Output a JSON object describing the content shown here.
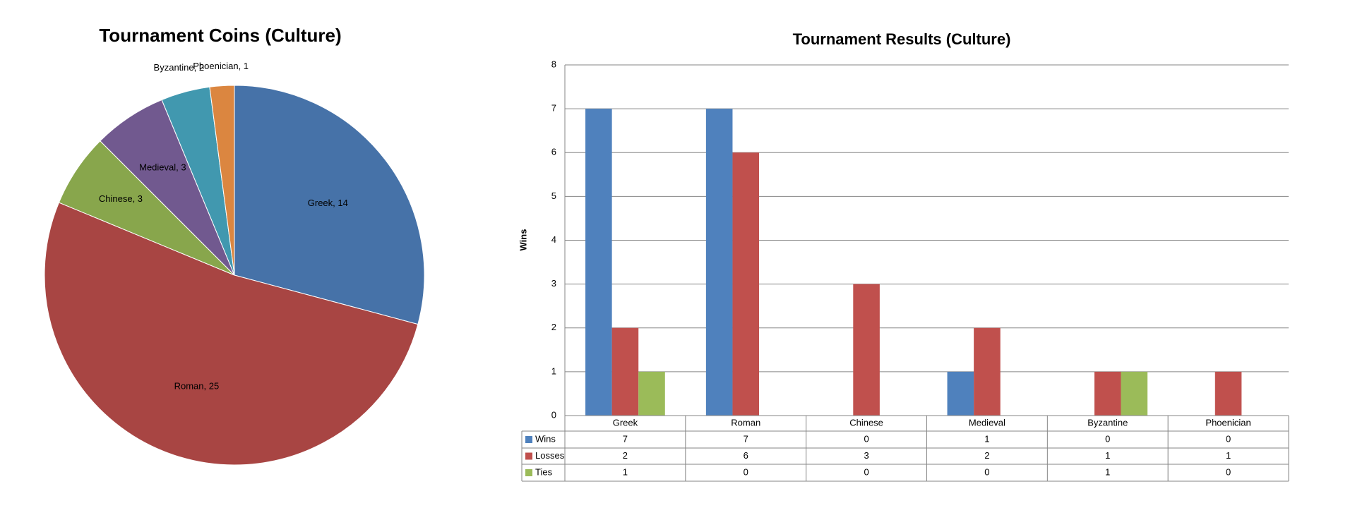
{
  "chart_data": [
    {
      "type": "pie",
      "title": "Tournament Coins (Culture)",
      "values": [
        14,
        25,
        3,
        3,
        2,
        1
      ],
      "value_labels": [
        "Greek, 14",
        "Roman, 25",
        "Chinese, 3",
        "Medieval, 3",
        "Byzantine, 2",
        "Phoenician, 1"
      ],
      "colors": [
        "#4672a8",
        "#a84543",
        "#88a64c",
        "#71598f",
        "#4198af",
        "#db8640"
      ]
    },
    {
      "type": "bar",
      "title": "Tournament Results (Culture)",
      "y_label": "Wins",
      "categories": [
        "Greek",
        "Roman",
        "Chinese",
        "Medieval",
        "Byzantine",
        "Phoenician"
      ],
      "series": [
        {
          "name": "Wins",
          "color": "#4f81bd",
          "values": [
            7,
            7,
            0,
            1,
            0,
            0
          ]
        },
        {
          "name": "Losses",
          "color": "#c0504d",
          "values": [
            2,
            6,
            3,
            2,
            1,
            1
          ]
        },
        {
          "name": "Ties",
          "color": "#9bbb59",
          "values": [
            1,
            0,
            0,
            0,
            1,
            0
          ]
        }
      ],
      "ylim": [
        0,
        8
      ],
      "yticks": [
        0,
        1,
        2,
        3,
        4,
        5,
        6,
        7,
        8
      ],
      "grid": true,
      "data_table": true
    }
  ]
}
